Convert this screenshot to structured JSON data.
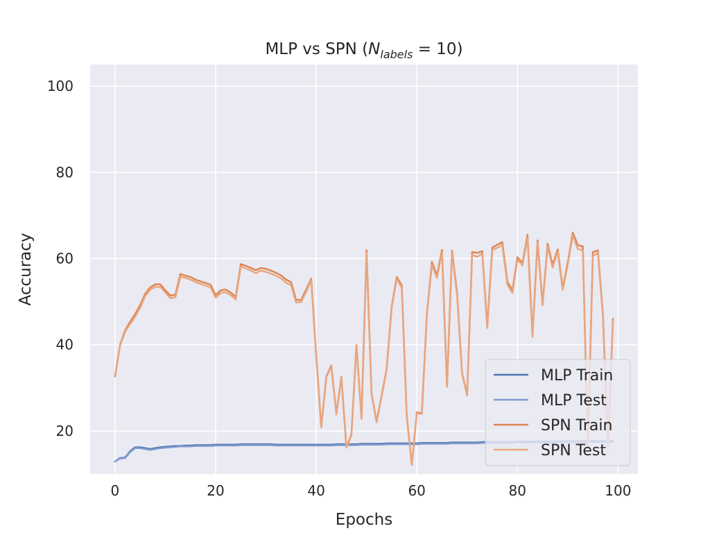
{
  "chart_data": {
    "type": "line",
    "title_prefix": "MLP vs SPN (",
    "title_math_N": "N",
    "title_math_sub": "labels",
    "title_math_rest": " = 10)",
    "xlabel": "Epochs",
    "ylabel": "Accuracy",
    "xlim": [
      -4.95,
      103.95
    ],
    "ylim": [
      10,
      105
    ],
    "xticks": [
      0,
      20,
      40,
      60,
      80,
      100
    ],
    "yticks": [
      20,
      40,
      60,
      80,
      100
    ],
    "grid": true,
    "legend_position": "lower-right",
    "colors": {
      "background": "#eaeaf2",
      "grid": "#ffffff",
      "mlp_train": "#4c72b0",
      "mlp_test": "#819cd0",
      "spn_train": "#dd8452",
      "spn_test": "#e8a67f"
    },
    "series": [
      {
        "name": "MLP Train",
        "color": "#4c72b0",
        "y": [
          12.9,
          13.7,
          13.8,
          15.3,
          16.2,
          16.2,
          16.0,
          15.8,
          16.0,
          16.2,
          16.3,
          16.4,
          16.5,
          16.5,
          16.6,
          16.6,
          16.7,
          16.7,
          16.7,
          16.7,
          16.8,
          16.8,
          16.8,
          16.8,
          16.8,
          16.9,
          16.9,
          16.9,
          16.9,
          16.9,
          16.9,
          16.9,
          16.8,
          16.8,
          16.8,
          16.8,
          16.8,
          16.8,
          16.8,
          16.8,
          16.8,
          16.8,
          16.8,
          16.8,
          16.9,
          16.9,
          16.9,
          16.9,
          16.9,
          17.0,
          17.0,
          17.0,
          17.0,
          17.0,
          17.1,
          17.1,
          17.1,
          17.1,
          17.1,
          17.1,
          17.1,
          17.2,
          17.2,
          17.2,
          17.2,
          17.2,
          17.2,
          17.3,
          17.3,
          17.3,
          17.3,
          17.3,
          17.3,
          17.4,
          17.4,
          17.4,
          17.4,
          17.4,
          17.4,
          17.4,
          17.5,
          17.5,
          17.5,
          17.5,
          17.5,
          17.5,
          17.5,
          17.5,
          17.6,
          17.6,
          17.6,
          17.6,
          17.6,
          17.6,
          17.6,
          17.6,
          17.6,
          17.6,
          17.6,
          17.6
        ]
      },
      {
        "name": "MLP Test",
        "color": "#819cd0",
        "y": [
          12.9,
          13.6,
          13.7,
          15.1,
          16.0,
          16.0,
          15.8,
          15.6,
          15.8,
          16.0,
          16.1,
          16.2,
          16.3,
          16.4,
          16.4,
          16.4,
          16.5,
          16.5,
          16.5,
          16.5,
          16.6,
          16.6,
          16.6,
          16.6,
          16.6,
          16.7,
          16.7,
          16.7,
          16.7,
          16.7,
          16.7,
          16.7,
          16.6,
          16.6,
          16.6,
          16.6,
          16.6,
          16.6,
          16.6,
          16.6,
          16.6,
          16.6,
          16.6,
          16.6,
          16.7,
          16.7,
          16.7,
          16.7,
          16.7,
          16.8,
          16.8,
          16.8,
          16.8,
          16.8,
          16.9,
          16.9,
          16.9,
          16.9,
          16.9,
          16.9,
          16.9,
          17.0,
          17.0,
          17.0,
          17.0,
          17.0,
          17.0,
          17.1,
          17.1,
          17.1,
          17.1,
          17.1,
          17.1,
          17.2,
          17.2,
          17.2,
          17.2,
          17.2,
          17.2,
          17.2,
          17.3,
          17.3,
          17.3,
          17.3,
          17.3,
          17.3,
          17.3,
          17.3,
          17.4,
          17.4,
          17.4,
          17.4,
          17.4,
          17.4,
          17.4,
          17.4,
          17.4,
          17.4,
          17.4,
          17.4
        ]
      },
      {
        "name": "SPN Train",
        "color": "#dd8452",
        "y": [
          32.6,
          40.0,
          43.3,
          45.3,
          47.1,
          49.2,
          51.8,
          53.3,
          54.0,
          54.0,
          52.6,
          51.4,
          51.6,
          56.4,
          56.0,
          55.7,
          55.1,
          54.7,
          54.3,
          53.9,
          51.5,
          52.6,
          52.8,
          52.1,
          51.1,
          58.7,
          58.3,
          57.8,
          57.3,
          57.8,
          57.6,
          57.2,
          56.7,
          56.1,
          55.1,
          54.5,
          50.4,
          50.4,
          52.8,
          55.3,
          37.5,
          20.9,
          32.6,
          35.2,
          24.0,
          32.5,
          16.2,
          19.2,
          39.9,
          23.0,
          61.9,
          28.7,
          22.2,
          28.2,
          34.4,
          48.9,
          55.7,
          53.8,
          23.5,
          12.2,
          24.3,
          24.1,
          47.2,
          59.2,
          56.1,
          62.0,
          30.5,
          61.8,
          52.1,
          33.4,
          28.4,
          61.5,
          61.3,
          61.7,
          44.3,
          62.5,
          63.2,
          63.8,
          54.6,
          52.6,
          60.3,
          58.9,
          65.5,
          42.1,
          64.2,
          49.4,
          63.4,
          58.5,
          62.1,
          53.1,
          59.0,
          66.0,
          63.1,
          62.8,
          16.1,
          61.5,
          61.9,
          46.9,
          16.2,
          46.0
        ]
      },
      {
        "name": "SPN Test",
        "color": "#e8a67f",
        "y": [
          32.6,
          39.8,
          43.0,
          44.8,
          46.5,
          48.6,
          51.3,
          52.8,
          53.4,
          53.4,
          52.1,
          50.8,
          51.0,
          55.8,
          55.5,
          55.1,
          54.5,
          54.1,
          53.7,
          53.3,
          50.9,
          52.0,
          52.2,
          51.5,
          50.5,
          58.2,
          57.7,
          57.2,
          56.6,
          57.2,
          56.9,
          56.5,
          56.0,
          55.4,
          54.4,
          53.8,
          49.8,
          49.9,
          52.3,
          55.0,
          37.2,
          20.8,
          32.4,
          35.0,
          23.8,
          32.3,
          16.1,
          19.0,
          39.7,
          22.8,
          61.4,
          28.5,
          22.0,
          28.0,
          34.2,
          48.6,
          55.3,
          53.2,
          23.3,
          12.1,
          24.1,
          23.9,
          46.9,
          58.6,
          55.5,
          61.5,
          30.2,
          61.3,
          51.6,
          33.2,
          28.2,
          60.8,
          60.4,
          61.1,
          43.9,
          61.9,
          62.5,
          63.1,
          54.0,
          52.0,
          59.8,
          58.4,
          64.8,
          41.8,
          63.7,
          49.1,
          62.8,
          57.9,
          61.6,
          52.7,
          58.5,
          65.4,
          62.2,
          61.9,
          16.0,
          60.6,
          61.3,
          46.5,
          16.0,
          45.6
        ]
      }
    ]
  }
}
